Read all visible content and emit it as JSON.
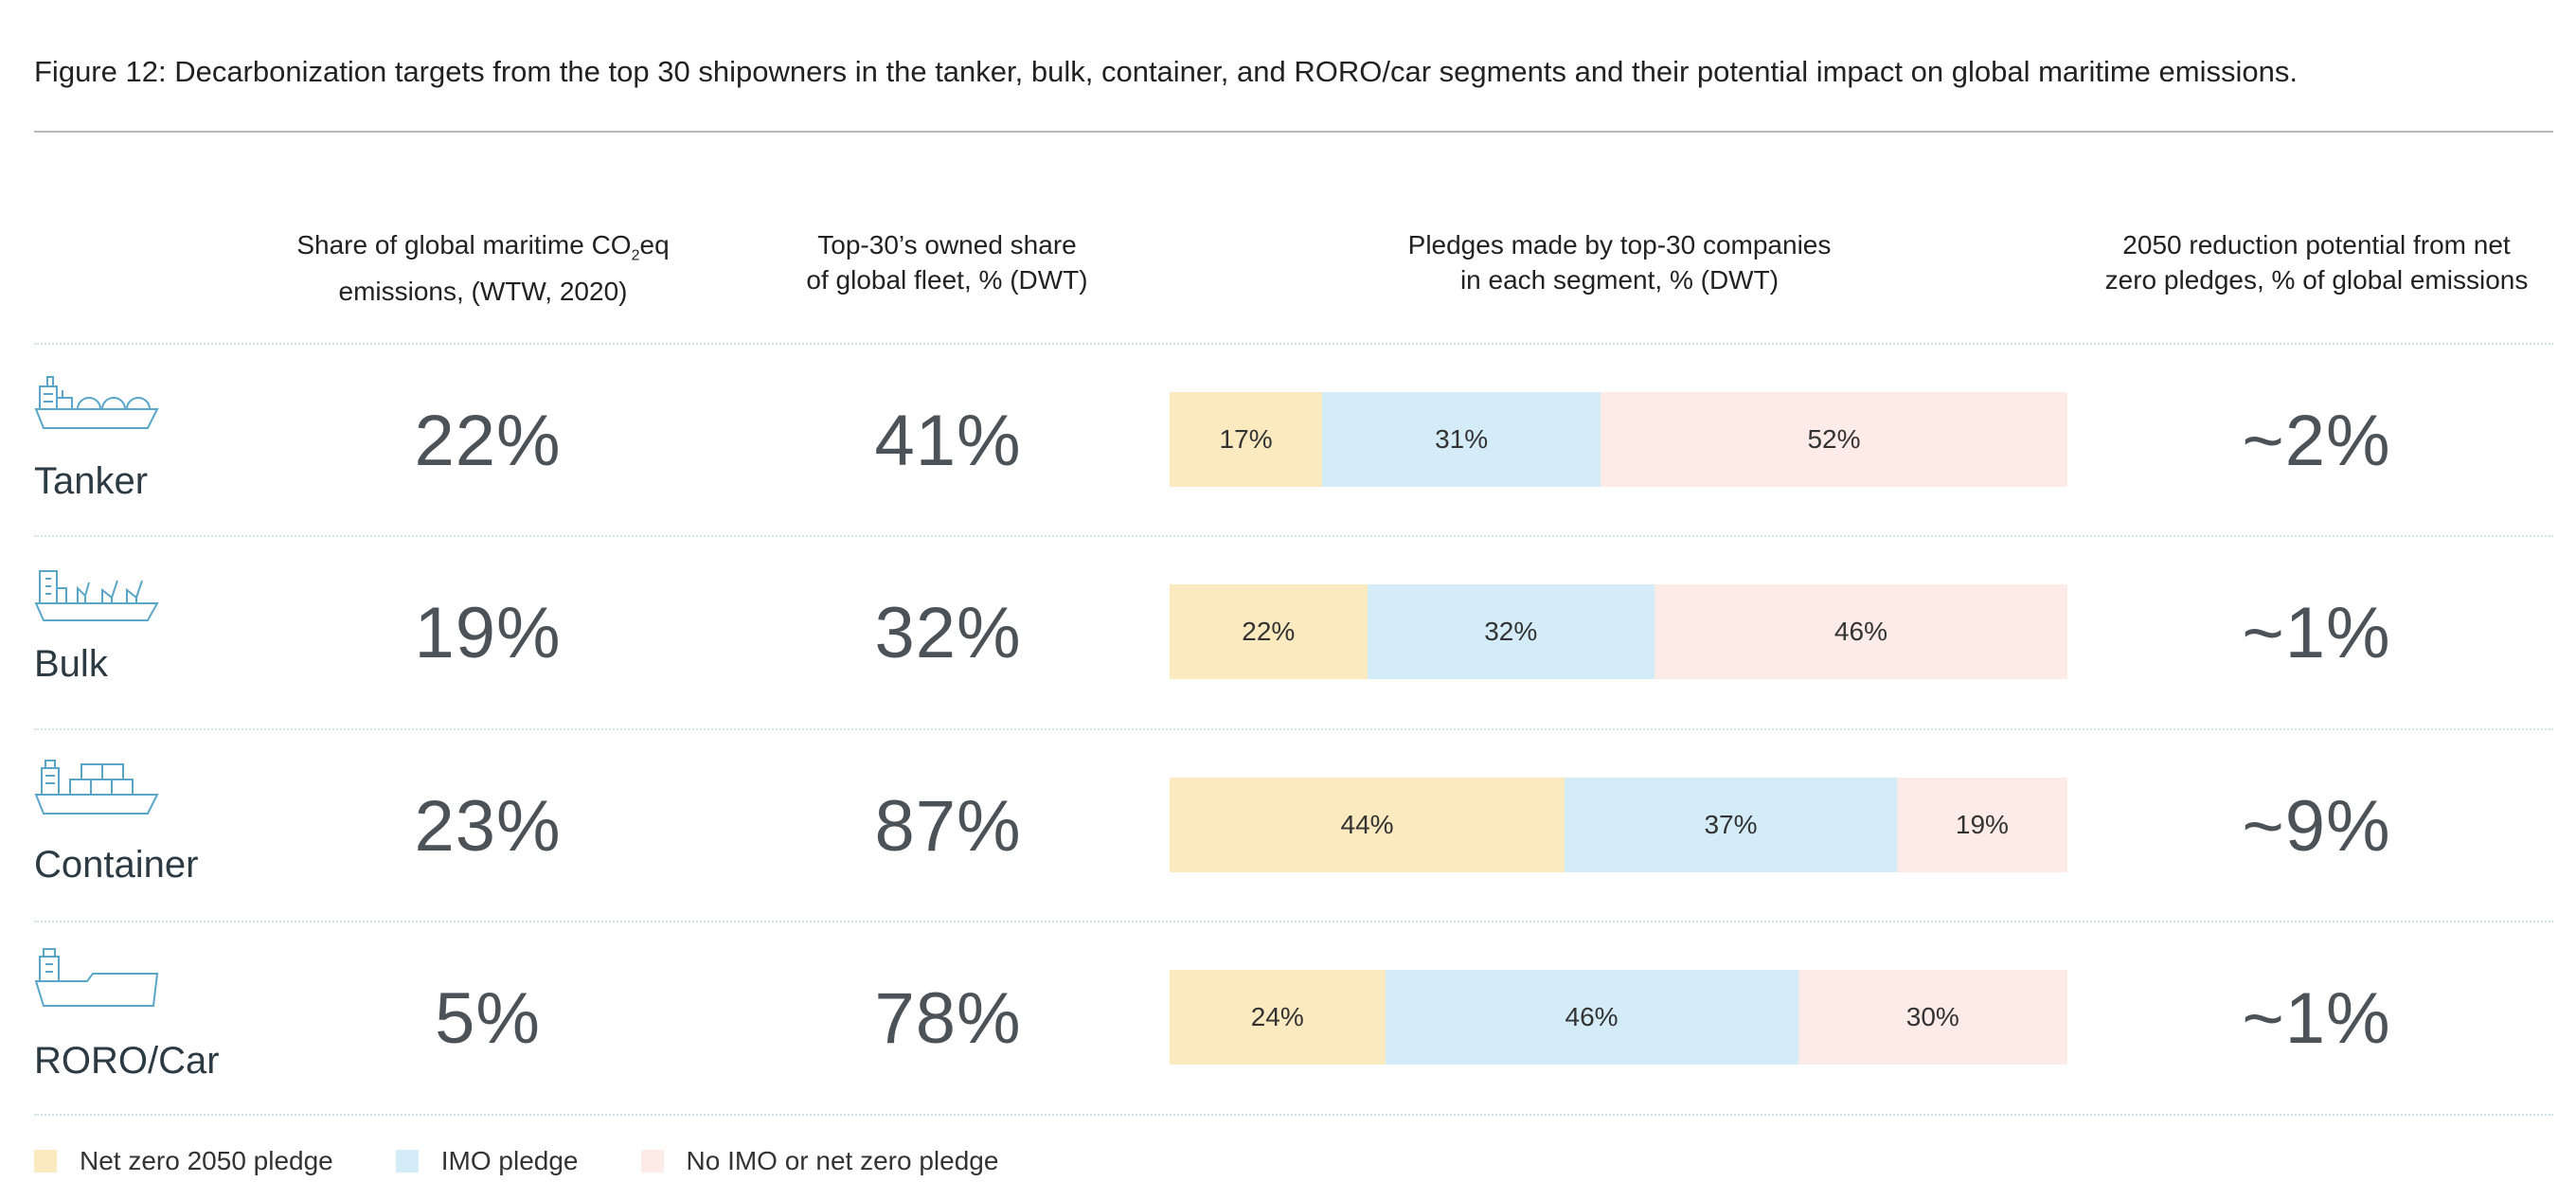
{
  "title": "Figure 12: Decarbonization targets from the top 30 shipowners in the tanker, bulk, container, and RORO/car segments and their potential impact on global maritime emissions.",
  "headers": {
    "share_line1_pre": "Share of global maritime CO",
    "share_line1_sub": "2",
    "share_line1_post": "eq",
    "share_line2": "emissions, (WTW, 2020)",
    "owned_line1": "Top-30’s owned share",
    "owned_line2": "of global fleet, % (DWT)",
    "pledges_line1": "Pledges made by top-30 companies",
    "pledges_line2": "in each segment, % (DWT)",
    "potential_line1": "2050 reduction potential from net",
    "potential_line2": "zero pledges, % of global emissions"
  },
  "chart_data": {
    "type": "bar",
    "orientation": "horizontal-stacked-100",
    "categories": [
      "Tanker",
      "Bulk",
      "Container",
      "RORO/Car"
    ],
    "share_of_global_emissions": [
      "22%",
      "19%",
      "23%",
      "5%"
    ],
    "top30_owned_share": [
      "41%",
      "32%",
      "87%",
      "78%"
    ],
    "reduction_potential_2050": [
      "~2%",
      "~1%",
      "~9%",
      "~1%"
    ],
    "series": [
      {
        "name": "Net zero 2050 pledge",
        "values": [
          17,
          22,
          44,
          24
        ],
        "color": "#fbeac0"
      },
      {
        "name": "IMO pledge",
        "values": [
          31,
          32,
          37,
          46
        ],
        "color": "#d3ecf7"
      },
      {
        "name": "No IMO or net zero pledge",
        "values": [
          52,
          46,
          19,
          30
        ],
        "color": "#fdebe7"
      }
    ],
    "value_labels": [
      [
        "17%",
        "31%",
        "52%"
      ],
      [
        "22%",
        "32%",
        "46%"
      ],
      [
        "44%",
        "37%",
        "19%"
      ],
      [
        "24%",
        "46%",
        "30%"
      ]
    ]
  },
  "icons": {
    "tanker": "tanker-ship-icon",
    "bulk": "bulk-ship-icon",
    "container": "container-ship-icon",
    "roro": "roro-ship-icon"
  },
  "legend": {
    "net_zero": "Net zero 2050 pledge",
    "imo": "IMO pledge",
    "none": "No IMO or net zero pledge"
  }
}
